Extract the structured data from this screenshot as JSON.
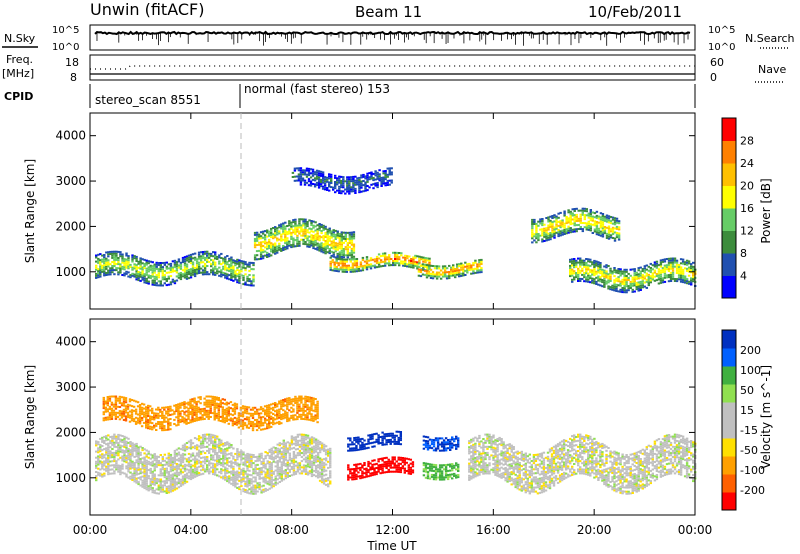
{
  "header": {
    "station": "Unwin (fitACF)",
    "beam": "Beam 11",
    "date": "10/Feb/2011"
  },
  "strips": {
    "nsky_label": "N.Sky",
    "nsearch_label": "N.Search",
    "freq_label_top": "Freq.",
    "freq_label_unit": "[MHz]",
    "nave_label": "Nave",
    "cpid_label": "CPID",
    "noise_ticks_left": [
      "10^5",
      "10^0"
    ],
    "noise_ticks_right": [
      "10^5",
      "10^0"
    ],
    "freq_ticks_left": [
      "18",
      "8"
    ],
    "nave_ticks_right": [
      "60",
      "0"
    ],
    "cpid_segments": [
      {
        "label": "stereo_scan 8551",
        "start_hour": 0,
        "end_hour": 6
      },
      {
        "label": "normal (fast stereo) 153",
        "start_hour": 6,
        "end_hour": 24
      }
    ]
  },
  "axes": {
    "x_label": "Time UT",
    "x_ticks": [
      "00:00",
      "04:00",
      "08:00",
      "12:00",
      "16:00",
      "20:00",
      "00:00"
    ],
    "y_label": "Slant Range [km]",
    "y_ticks": [
      "1000",
      "2000",
      "3000",
      "4000"
    ],
    "y_range_km": [
      180,
      4500
    ],
    "x_range_hours": [
      0,
      24
    ]
  },
  "colors": {
    "power_scale": [
      "#0000ff",
      "#2050b0",
      "#3c8c3c",
      "#66cc66",
      "#ffff00",
      "#ffc000",
      "#ff8000",
      "#ff0000"
    ],
    "velocity_scale": [
      "#ff0000",
      "#ff6000",
      "#ffa000",
      "#ffe000",
      "#c0c0c0",
      "#c0c0c0",
      "#90e050",
      "#40b040",
      "#0060ff",
      "#0030c0"
    ]
  },
  "chart_data": [
    {
      "type": "heatmap",
      "panel": "power",
      "xlabel": "Time UT",
      "ylabel": "Slant Range [km]",
      "colorbar_label": "Power [dB]",
      "colorbar_ticks": [
        "28",
        "24",
        "20",
        "16",
        "12",
        "8",
        "4"
      ],
      "xlim_hours": [
        0,
        24
      ],
      "ylim_km": [
        180,
        4500
      ],
      "features": [
        {
          "time_start": 0.2,
          "time_end": 6.5,
          "range_center_km": 1050,
          "range_width_km": 500,
          "power_db": 18
        },
        {
          "time_start": 6.5,
          "time_end": 10.5,
          "range_center_km": 1700,
          "range_width_km": 600,
          "power_db": 22
        },
        {
          "time_start": 9.5,
          "time_end": 13.5,
          "range_center_km": 1200,
          "range_width_km": 300,
          "power_db": 28
        },
        {
          "time_start": 13.0,
          "time_end": 15.5,
          "range_center_km": 1050,
          "range_width_km": 300,
          "power_db": 26
        },
        {
          "time_start": 17.5,
          "time_end": 21.0,
          "range_center_km": 2000,
          "range_width_km": 500,
          "power_db": 22
        },
        {
          "time_start": 19.0,
          "time_end": 24.0,
          "range_center_km": 900,
          "range_width_km": 500,
          "power_db": 20
        },
        {
          "time_start": 8.0,
          "time_end": 12.0,
          "range_center_km": 3000,
          "range_width_km": 400,
          "power_db": 8
        }
      ]
    },
    {
      "type": "heatmap",
      "panel": "velocity",
      "xlabel": "Time UT",
      "ylabel": "Slant Range [km]",
      "colorbar_label": "Velocity [m s^-1]",
      "colorbar_ticks": [
        "200",
        "100",
        "50",
        "15",
        "-15",
        "-50",
        "-100",
        "-200"
      ],
      "xlim_hours": [
        0,
        24
      ],
      "ylim_km": [
        180,
        4500
      ],
      "features": [
        {
          "time_start": 0.2,
          "time_end": 9.5,
          "range_center_km": 1300,
          "range_width_km": 900,
          "velocity_ms": 0
        },
        {
          "time_start": 10.2,
          "time_end": 12.8,
          "range_center_km": 1200,
          "range_width_km": 350,
          "velocity_ms": -220
        },
        {
          "time_start": 10.2,
          "time_end": 12.3,
          "range_center_km": 1800,
          "range_width_km": 300,
          "velocity_ms": 200
        },
        {
          "time_start": 13.2,
          "time_end": 14.6,
          "range_center_km": 1800,
          "range_width_km": 300,
          "velocity_ms": 150
        },
        {
          "time_start": 13.2,
          "time_end": 14.6,
          "range_center_km": 1200,
          "range_width_km": 350,
          "velocity_ms": 60
        },
        {
          "time_start": 15.0,
          "time_end": 24.0,
          "range_center_km": 1300,
          "range_width_km": 900,
          "velocity_ms": 0
        },
        {
          "time_start": 0.5,
          "time_end": 9.0,
          "range_center_km": 2400,
          "range_width_km": 500,
          "velocity_ms": -60
        }
      ]
    }
  ]
}
